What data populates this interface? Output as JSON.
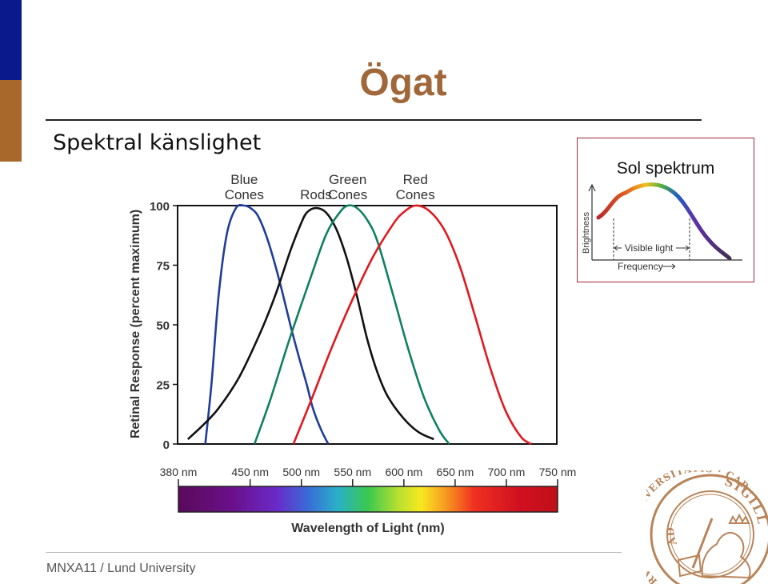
{
  "slide": {
    "title": "Ögat",
    "subtitle": "Spektral känslighet",
    "footer": "MNXA11 / Lund University",
    "colors": {
      "accent_blue": "#0a1a8c",
      "accent_brown": "#a8682c",
      "title": "#a0683a",
      "inset_border": "#a0283a"
    }
  },
  "chart_data": [
    {
      "type": "line",
      "ylabel": "Retinal Response (percent maximum)",
      "ylim": [
        0,
        100
      ],
      "yticks": [
        0,
        25,
        50,
        75,
        100
      ],
      "xlim": [
        380,
        750
      ],
      "series": [
        {
          "name": "Blue Cones",
          "label_lines": [
            "Blue",
            "Cones"
          ],
          "color": "#1f3d99",
          "x": [
            407,
            413,
            420,
            428,
            437,
            445,
            451,
            458,
            466,
            474,
            482,
            490,
            498,
            506,
            512,
            520,
            527
          ],
          "y": [
            0,
            25,
            62,
            88,
            99,
            100,
            99,
            96,
            88,
            77,
            64,
            50,
            37,
            25,
            15,
            6,
            0
          ]
        },
        {
          "name": "Rods",
          "label_lines": [
            "Rods"
          ],
          "color": "#111111",
          "x": [
            390,
            405,
            420,
            440,
            460,
            475,
            490,
            500,
            506,
            515,
            525,
            535,
            545,
            555,
            565,
            575,
            585,
            600,
            615,
            630
          ],
          "y": [
            2,
            8,
            15,
            28,
            46,
            62,
            81,
            92,
            97,
            99,
            97,
            90,
            78,
            62,
            44,
            30,
            20,
            11,
            5,
            2
          ]
        },
        {
          "name": "Green Cones",
          "label_lines": [
            "Green",
            "Cones"
          ],
          "color": "#108060",
          "x": [
            455,
            470,
            490,
            510,
            525,
            538,
            546,
            555,
            565,
            575,
            590,
            605,
            620,
            635,
            645
          ],
          "y": [
            0,
            18,
            45,
            70,
            88,
            97,
            100,
            99,
            94,
            85,
            63,
            40,
            20,
            6,
            0
          ]
        },
        {
          "name": "Red Cones",
          "label_lines": [
            "Red",
            "Cones"
          ],
          "color": "#e0191e",
          "x": [
            493,
            510,
            530,
            550,
            570,
            590,
            600,
            612,
            625,
            640,
            655,
            670,
            685,
            700,
            715,
            725
          ],
          "y": [
            0,
            18,
            40,
            60,
            78,
            92,
            97,
            100,
            98,
            90,
            75,
            54,
            32,
            14,
            3,
            0
          ]
        }
      ]
    },
    {
      "type": "bar",
      "xlabel": "Wavelength of Light (nm)",
      "tick_labels": [
        "380 nm",
        "450 nm",
        "500 nm",
        "550 nm",
        "600 nm",
        "650 nm",
        "700 nm",
        "750 nm"
      ],
      "tick_values": [
        380,
        450,
        500,
        550,
        600,
        650,
        700,
        750
      ]
    },
    {
      "type": "line",
      "title": "Sol spektrum",
      "xlabel": "Frequency",
      "ylabel": "Brightness",
      "annotation": "Visible light"
    }
  ],
  "seal": {
    "outer_text": "SIGILL",
    "mid_text": "RVMQVE · VNIVERSITATIS · CAROLINÆ",
    "side_text": "LVNDENSIS",
    "inner_text": "AD",
    "colors": {
      "ink": "#b8845a",
      "light": "#ffffff"
    }
  }
}
